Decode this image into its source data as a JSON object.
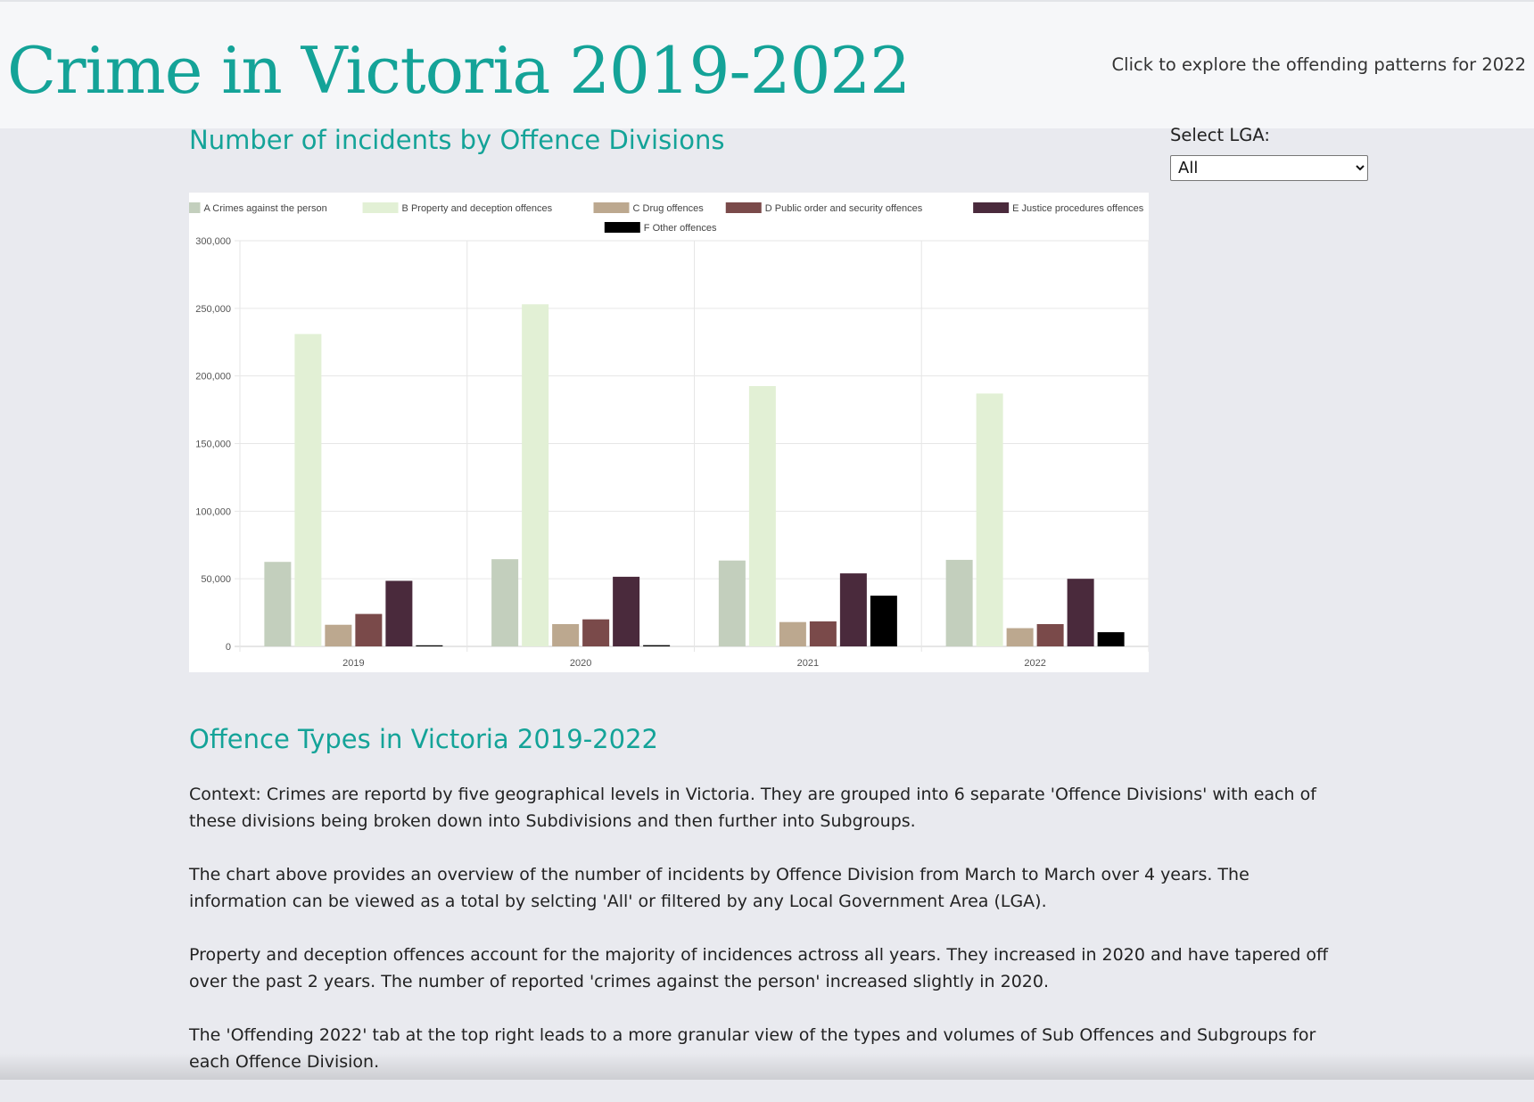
{
  "header": {
    "title": "Crime in Victoria 2019-2022",
    "nav_link": "Click to explore the offending patterns for 2022"
  },
  "chart_section": {
    "title": "Number of incidents by Offence Divisions"
  },
  "lga": {
    "label": "Select LGA:",
    "selected": "All"
  },
  "chart_data": {
    "type": "bar",
    "categories": [
      "2019",
      "2020",
      "2021",
      "2022"
    ],
    "ylim": [
      0,
      300000
    ],
    "yticks": [
      "0",
      "50,000",
      "100,000",
      "150,000",
      "200,000",
      "250,000",
      "300,000"
    ],
    "ytick_values": [
      0,
      50000,
      100000,
      150000,
      200000,
      250000,
      300000
    ],
    "grid": true,
    "legend_position": "top",
    "series": [
      {
        "name": "A Crimes against the person",
        "color": "#c3cfbd",
        "values": [
          62500,
          64500,
          63500,
          64000
        ]
      },
      {
        "name": "B Property and deception offences",
        "color": "#e2f0d5",
        "values": [
          231000,
          253000,
          192500,
          187000
        ]
      },
      {
        "name": "C Drug offences",
        "color": "#bca88f",
        "values": [
          16000,
          16500,
          18000,
          13500
        ]
      },
      {
        "name": "D Public order and security offences",
        "color": "#7a4a4a",
        "values": [
          24000,
          20000,
          18500,
          16500
        ]
      },
      {
        "name": "E Justice procedures offences",
        "color": "#4a2a3c",
        "values": [
          48500,
          51500,
          54000,
          50000
        ]
      },
      {
        "name": "F Other offences",
        "color": "#000000",
        "values": [
          800,
          900,
          37500,
          10500
        ]
      }
    ]
  },
  "offence_section": {
    "title": "Offence Types in Victoria 2019-2022",
    "paragraphs": [
      "Context: Crimes are reportd by five geographical levels in Victoria. They are grouped into 6 separate 'Offence Divisions' with each of these divisions being broken down into Subdivisions and then further into Subgroups.",
      "The chart above provides an overview of the number of incidents by Offence Division from March to March over 4 years. The information can be viewed as a total by selcting 'All' or filtered by any Local Government Area (LGA).",
      "Property and deception offences account for the majority of incidences actross all years. They increased in 2020 and have tapered off over the past 2 years. The number of reported 'crimes against the person' increased slightly in 2020.",
      "The 'Offending 2022' tab at the top right leads to a more granular view of the types and volumes of Sub Offences and Subgroups for each Offence Division."
    ]
  }
}
